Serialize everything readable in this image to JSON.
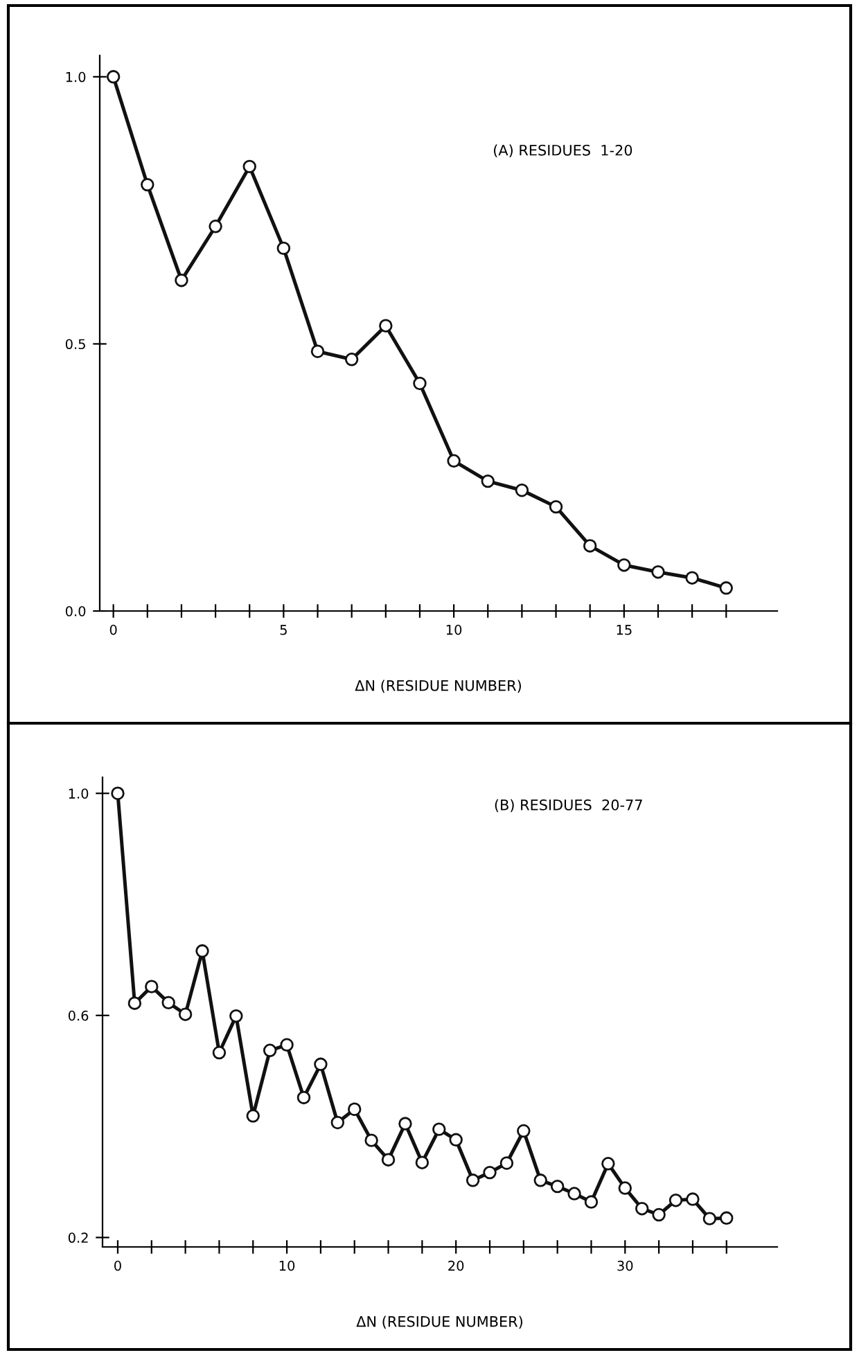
{
  "chart_data": [
    {
      "type": "line",
      "title": "(A) RESIDUES  1-20",
      "xlabel": "ΔN (RESIDUE NUMBER)",
      "marker": "circle",
      "line_style": "solid",
      "grid": false,
      "legend": false,
      "x": [
        0,
        1,
        2,
        3,
        4,
        5,
        6,
        7,
        8,
        9,
        10,
        11,
        12,
        13,
        14,
        15,
        16,
        17,
        18
      ],
      "series": [
        {
          "color": "#111111",
          "values": [
            1.0,
            0.798,
            0.619,
            0.72,
            0.832,
            0.679,
            0.486,
            0.471,
            0.534,
            0.426,
            0.281,
            0.243,
            0.226,
            0.195,
            0.122,
            0.086,
            0.073,
            0.062,
            0.043
          ]
        }
      ],
      "xlim": [
        -0.4,
        19.5
      ],
      "ylim": [
        0.0,
        1.04
      ],
      "xticks": [
        {
          "value": 0,
          "label": "0"
        },
        {
          "value": 1,
          "label": null
        },
        {
          "value": 2,
          "label": null
        },
        {
          "value": 3,
          "label": null
        },
        {
          "value": 4,
          "label": null
        },
        {
          "value": 5,
          "label": "5"
        },
        {
          "value": 6,
          "label": null
        },
        {
          "value": 7,
          "label": null
        },
        {
          "value": 8,
          "label": null
        },
        {
          "value": 9,
          "label": null
        },
        {
          "value": 10,
          "label": "10"
        },
        {
          "value": 11,
          "label": null
        },
        {
          "value": 12,
          "label": null
        },
        {
          "value": 13,
          "label": null
        },
        {
          "value": 14,
          "label": null
        },
        {
          "value": 15,
          "label": "15"
        },
        {
          "value": 16,
          "label": null
        },
        {
          "value": 17,
          "label": null
        },
        {
          "value": 18,
          "label": null
        }
      ],
      "yticks": [
        {
          "value": 0.0,
          "label": "0.0"
        },
        {
          "value": 0.5,
          "label": "0.5"
        },
        {
          "value": 1.0,
          "label": "1.0"
        }
      ]
    },
    {
      "type": "line",
      "title": "(B) RESIDUES  20-77",
      "xlabel": "ΔN (RESIDUE NUMBER)",
      "marker": "circle",
      "line_style": "solid",
      "grid": false,
      "legend": false,
      "x": [
        0,
        1,
        2,
        3,
        4,
        5,
        6,
        7,
        8,
        9,
        10,
        11,
        12,
        13,
        14,
        15,
        16,
        17,
        18,
        19,
        20,
        21,
        22,
        23,
        24,
        25,
        26,
        27,
        28,
        29,
        30,
        31,
        32,
        33,
        34,
        35,
        36
      ],
      "series": [
        {
          "color": "#111111",
          "values": [
            1.0,
            0.622,
            0.652,
            0.623,
            0.602,
            0.716,
            0.533,
            0.599,
            0.419,
            0.537,
            0.547,
            0.452,
            0.512,
            0.407,
            0.431,
            0.375,
            0.34,
            0.405,
            0.335,
            0.395,
            0.376,
            0.303,
            0.317,
            0.334,
            0.392,
            0.303,
            0.292,
            0.279,
            0.264,
            0.333,
            0.289,
            0.252,
            0.241,
            0.267,
            0.269,
            0.234,
            0.235
          ]
        }
      ],
      "xlim": [
        -0.9,
        39.0
      ],
      "ylim": [
        0.183,
        1.029
      ],
      "xticks": [
        {
          "value": 0,
          "label": "0"
        },
        {
          "value": 2,
          "label": null
        },
        {
          "value": 4,
          "label": null
        },
        {
          "value": 6,
          "label": null
        },
        {
          "value": 8,
          "label": null
        },
        {
          "value": 10,
          "label": "10"
        },
        {
          "value": 12,
          "label": null
        },
        {
          "value": 14,
          "label": null
        },
        {
          "value": 16,
          "label": null
        },
        {
          "value": 18,
          "label": null
        },
        {
          "value": 20,
          "label": "20"
        },
        {
          "value": 22,
          "label": null
        },
        {
          "value": 24,
          "label": null
        },
        {
          "value": 26,
          "label": null
        },
        {
          "value": 28,
          "label": null
        },
        {
          "value": 30,
          "label": "30"
        },
        {
          "value": 32,
          "label": null
        },
        {
          "value": 34,
          "label": null
        },
        {
          "value": 36,
          "label": null
        }
      ],
      "yticks": [
        {
          "value": 0.2,
          "label": "0.2"
        },
        {
          "value": 0.6,
          "label": "0.6"
        },
        {
          "value": 1.0,
          "label": "1.0"
        }
      ]
    }
  ]
}
